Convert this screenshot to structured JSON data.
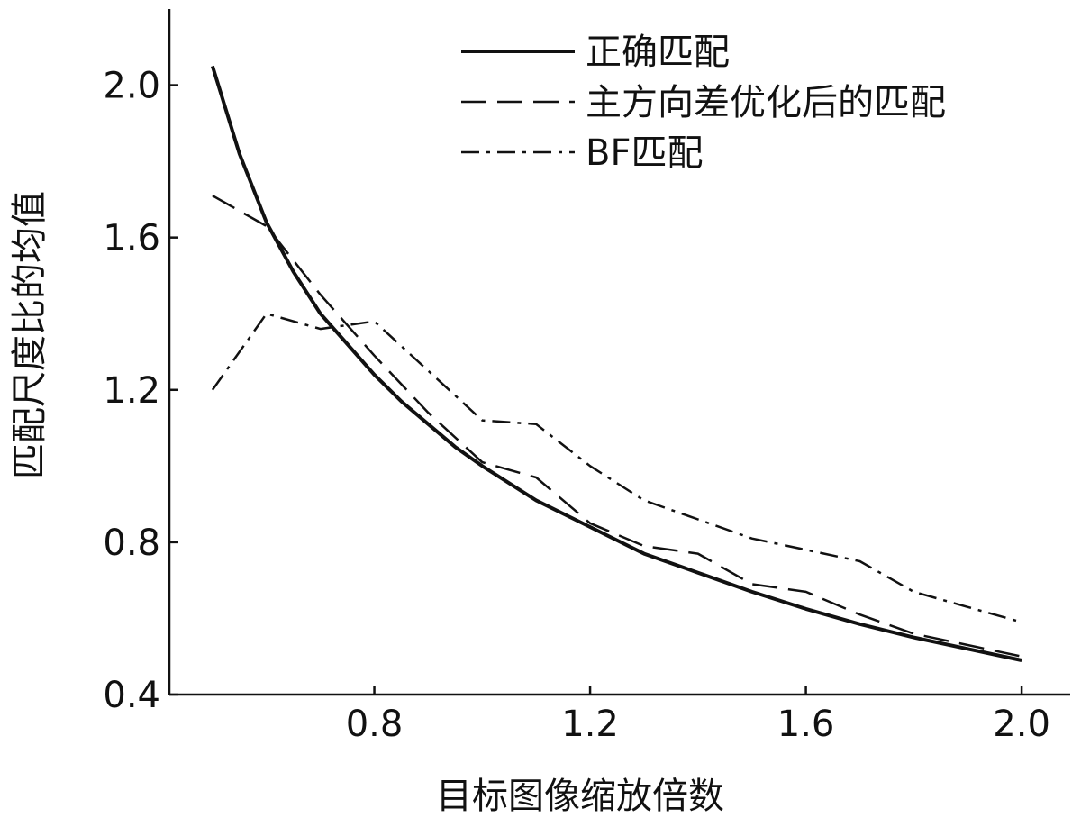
{
  "chart_data": {
    "type": "line",
    "xlabel": "目标图像缩放倍数",
    "ylabel": "匹配尺度比的均值",
    "xlim": [
      0.42,
      2.09
    ],
    "ylim": [
      0.4,
      2.2
    ],
    "x_ticks": [
      0.8,
      1.2,
      1.6,
      2.0
    ],
    "x_tick_labels": [
      "0.8",
      "1.2",
      "1.6",
      "2.0"
    ],
    "y_ticks": [
      0.4,
      0.8,
      1.2,
      1.6,
      2.0
    ],
    "y_tick_labels": [
      "0.4",
      "0.8",
      "1.2",
      "1.6",
      "2.0"
    ],
    "grid": false,
    "legend_position": "top-right",
    "series": [
      {
        "name": "正确匹配",
        "style": "solid",
        "x": [
          0.5,
          0.55,
          0.6,
          0.65,
          0.7,
          0.75,
          0.8,
          0.85,
          0.9,
          0.95,
          1.0,
          1.1,
          1.2,
          1.3,
          1.4,
          1.5,
          1.6,
          1.7,
          1.8,
          1.9,
          2.0
        ],
        "y": [
          2.05,
          1.82,
          1.64,
          1.51,
          1.4,
          1.32,
          1.24,
          1.17,
          1.11,
          1.05,
          1.0,
          0.91,
          0.84,
          0.77,
          0.72,
          0.67,
          0.625,
          0.585,
          0.55,
          0.52,
          0.49
        ]
      },
      {
        "name": "主方向差优化后的匹配",
        "style": "dashed",
        "x": [
          0.5,
          0.6,
          0.7,
          0.8,
          0.9,
          1.0,
          1.1,
          1.2,
          1.3,
          1.4,
          1.5,
          1.6,
          1.7,
          1.8,
          1.9,
          2.0
        ],
        "y": [
          1.71,
          1.63,
          1.45,
          1.29,
          1.14,
          1.01,
          0.97,
          0.85,
          0.79,
          0.77,
          0.69,
          0.67,
          0.61,
          0.56,
          0.53,
          0.5
        ]
      },
      {
        "name": "BF匹配",
        "style": "dashdot",
        "x": [
          0.5,
          0.6,
          0.7,
          0.8,
          0.9,
          1.0,
          1.1,
          1.2,
          1.3,
          1.4,
          1.5,
          1.6,
          1.7,
          1.8,
          1.9,
          2.0
        ],
        "y": [
          1.2,
          1.4,
          1.36,
          1.38,
          1.25,
          1.12,
          1.11,
          1.0,
          0.91,
          0.86,
          0.81,
          0.78,
          0.75,
          0.67,
          0.63,
          0.59
        ]
      }
    ]
  }
}
